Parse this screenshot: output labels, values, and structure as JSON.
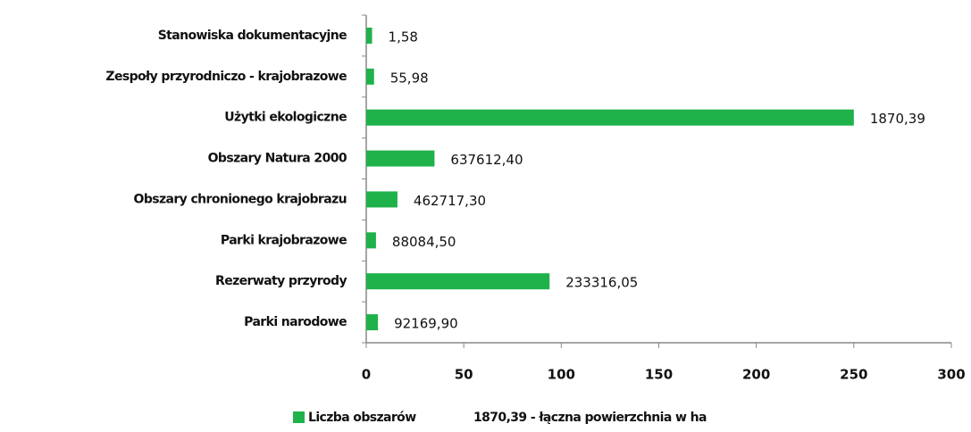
{
  "chart_data": {
    "type": "bar",
    "orientation": "horizontal",
    "categories": [
      "Stanowiska dokumentacyjne",
      "Zespoły przyrodniczo - krajobrazowe",
      "Użytki ekologiczne",
      "Obszary Natura 2000",
      "Obszary chronionego krajobrazu",
      "Parki krajobrazowe",
      "Rezerwaty przyrody",
      "Parki narodowe"
    ],
    "series": [
      {
        "name": "Liczba obszarów",
        "color": "#1fb24a",
        "values": [
          3,
          4,
          250,
          35,
          16,
          5,
          94,
          6
        ],
        "data_labels": [
          "1,58",
          "55,98",
          "1870,39",
          "637612,40",
          "462717,30",
          "88084,50",
          "233316,05",
          "92169,90"
        ]
      }
    ],
    "legend_note": "1870,39 - łączna powierzchnia w ha",
    "xlim": [
      0,
      300
    ],
    "xticks": [
      0,
      50,
      100,
      150,
      200,
      250,
      300
    ],
    "grid": false,
    "legend": "bottom"
  }
}
